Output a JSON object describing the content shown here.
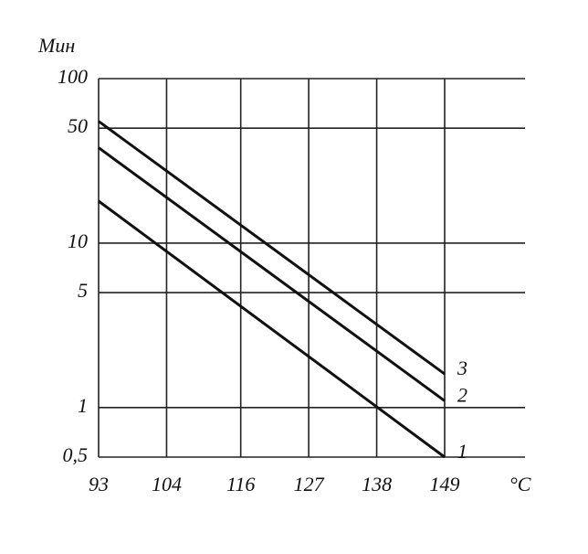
{
  "chart_data": {
    "type": "line",
    "y_label": "Мин",
    "x_label": "°C",
    "x": [
      93,
      149
    ],
    "series": [
      {
        "name": "1",
        "color": "#111111",
        "values": [
          18,
          0.5
        ]
      },
      {
        "name": "2",
        "color": "#111111",
        "values": [
          38,
          1.1
        ]
      },
      {
        "name": "3",
        "color": "#111111",
        "values": [
          55,
          1.6
        ]
      }
    ],
    "xlim": [
      93,
      162
    ],
    "xticks": [
      93,
      104,
      116,
      127,
      138,
      149
    ],
    "ylim": [
      0.5,
      100
    ],
    "ylog": true,
    "yticks": [
      {
        "value": 0.5,
        "label": "0,5"
      },
      1,
      5,
      10,
      50,
      100
    ],
    "grid": true
  }
}
